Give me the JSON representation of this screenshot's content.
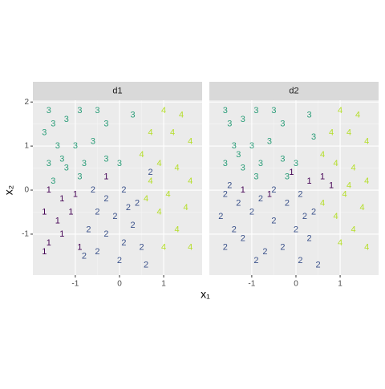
{
  "chart_data": [
    {
      "type": "scatter",
      "facet": "d1",
      "xlabel": "x₁",
      "ylabel": "x₂",
      "xlim": [
        -1.96,
        1.87
      ],
      "ylim": [
        -1.93,
        2.04
      ],
      "xticks": [
        -1,
        0,
        1
      ],
      "yticks": [
        -1,
        0,
        1,
        2
      ],
      "grid": true,
      "palette": {
        "1": "#440154",
        "2": "#3b528b",
        "3": "#2a9d78",
        "4": "#b5de2b"
      },
      "x": [
        -1.6,
        -1.5,
        -1.7,
        -1.2,
        -0.9,
        -0.5,
        -0.3,
        -1.4,
        -1.0,
        -0.6,
        -1.6,
        -1.2,
        -0.8,
        -0.3,
        0.0,
        -1.5,
        -0.9,
        0.3,
        -1.3,
        1.0,
        1.4,
        0.7,
        1.2,
        1.6,
        0.5,
        0.9,
        1.3,
        1.6,
        0.7,
        1.1,
        1.5,
        0.9,
        1.3,
        1.0,
        1.6,
        0.6,
        -1.6,
        -1.3,
        -1.7,
        -1.4,
        -1.1,
        -1.6,
        -1.3,
        -0.9,
        -1.0,
        -0.3,
        -1.7,
        -0.6,
        -0.3,
        0.1,
        0.4,
        -0.5,
        -0.1,
        0.3,
        -0.7,
        -0.3,
        0.1,
        0.5,
        -0.5,
        0.0,
        0.6,
        -0.8,
        0.2,
        0.7
      ],
      "y": [
        1.8,
        1.5,
        1.3,
        1.6,
        1.8,
        1.8,
        1.5,
        1.0,
        1.0,
        1.1,
        0.6,
        0.5,
        0.6,
        0.7,
        0.6,
        0.2,
        0.3,
        1.7,
        0.7,
        1.8,
        1.7,
        1.3,
        1.3,
        1.1,
        0.8,
        0.6,
        0.5,
        0.2,
        0.2,
        -0.1,
        -0.4,
        -0.5,
        -0.9,
        -1.3,
        -1.3,
        -0.2,
        0.0,
        -0.2,
        -0.5,
        -0.7,
        -0.5,
        -1.2,
        -1.0,
        -1.3,
        -0.1,
        0.3,
        -1.4,
        0.0,
        -0.2,
        0.0,
        -0.3,
        -0.5,
        -0.6,
        -0.8,
        -0.9,
        -1.0,
        -1.2,
        -1.3,
        -1.4,
        -1.6,
        -1.7,
        -1.5,
        -0.4,
        0.4
      ],
      "labels": [
        "3",
        "3",
        "3",
        "3",
        "3",
        "3",
        "3",
        "3",
        "3",
        "3",
        "3",
        "3",
        "3",
        "3",
        "3",
        "3",
        "3",
        "3",
        "3",
        "4",
        "4",
        "4",
        "4",
        "4",
        "4",
        "4",
        "4",
        "4",
        "4",
        "4",
        "4",
        "4",
        "4",
        "4",
        "4",
        "4",
        "1",
        "1",
        "1",
        "1",
        "1",
        "1",
        "1",
        "1",
        "1",
        "1",
        "1",
        "2",
        "2",
        "2",
        "2",
        "2",
        "2",
        "2",
        "2",
        "2",
        "2",
        "2",
        "2",
        "2",
        "2",
        "2",
        "2",
        "2"
      ]
    },
    {
      "type": "scatter",
      "facet": "d2",
      "xlim": [
        -1.96,
        1.87
      ],
      "ylim": [
        -1.93,
        2.04
      ],
      "xticks": [
        -1,
        0,
        1
      ],
      "yticks": [
        -1,
        0,
        1,
        2
      ],
      "grid": true,
      "palette": {
        "1": "#440154",
        "2": "#3b528b",
        "3": "#2a9d78",
        "4": "#b5de2b"
      },
      "x": [
        -1.6,
        -1.5,
        -1.2,
        -0.9,
        -0.5,
        -0.3,
        -1.4,
        -1.0,
        -0.6,
        -1.6,
        -1.2,
        -0.8,
        -0.3,
        0.0,
        -0.9,
        0.3,
        -1.3,
        0.4,
        -0.2,
        1.0,
        1.4,
        0.8,
        1.2,
        1.6,
        0.6,
        0.9,
        1.3,
        1.6,
        1.1,
        1.5,
        0.9,
        1.3,
        1.0,
        1.6,
        0.6,
        1.2,
        -1.2,
        -0.6,
        0.3,
        0.6,
        0.8,
        -0.1,
        -1.6,
        -1.3,
        -1.7,
        -1.4,
        -1.0,
        -1.6,
        -1.2,
        -0.8,
        -0.5,
        -0.2,
        0.1,
        0.4,
        -0.5,
        0.0,
        0.3,
        -0.7,
        -0.3,
        0.1,
        0.5,
        -1.5,
        -0.9,
        0.2
      ],
      "y": [
        1.8,
        1.5,
        1.6,
        1.8,
        1.8,
        1.5,
        1.0,
        1.0,
        1.1,
        0.6,
        0.5,
        0.6,
        0.7,
        0.6,
        0.3,
        1.7,
        0.8,
        1.2,
        0.3,
        1.8,
        1.7,
        1.3,
        1.3,
        1.1,
        0.8,
        0.6,
        0.5,
        0.2,
        -0.1,
        -0.4,
        -0.6,
        -0.9,
        -1.2,
        -1.3,
        -0.3,
        0.1,
        0.0,
        -0.1,
        0.2,
        0.3,
        0.1,
        0.4,
        -0.1,
        -0.3,
        -0.6,
        -0.9,
        -0.5,
        -1.3,
        -1.1,
        -0.2,
        0.0,
        -0.3,
        -0.1,
        -0.5,
        -0.7,
        -0.9,
        -1.1,
        -1.4,
        -1.3,
        -1.6,
        -1.7,
        0.1,
        -1.6,
        -0.6
      ],
      "labels": [
        "3",
        "3",
        "3",
        "3",
        "3",
        "3",
        "3",
        "3",
        "3",
        "3",
        "3",
        "3",
        "3",
        "3",
        "3",
        "3",
        "3",
        "3",
        "3",
        "4",
        "4",
        "4",
        "4",
        "4",
        "4",
        "4",
        "4",
        "4",
        "4",
        "4",
        "4",
        "4",
        "4",
        "4",
        "4",
        "4",
        "1",
        "1",
        "1",
        "1",
        "1",
        "1",
        "2",
        "2",
        "2",
        "2",
        "2",
        "2",
        "2",
        "2",
        "2",
        "2",
        "2",
        "2",
        "2",
        "2",
        "2",
        "2",
        "2",
        "2",
        "2",
        "2",
        "2",
        "2"
      ]
    }
  ]
}
